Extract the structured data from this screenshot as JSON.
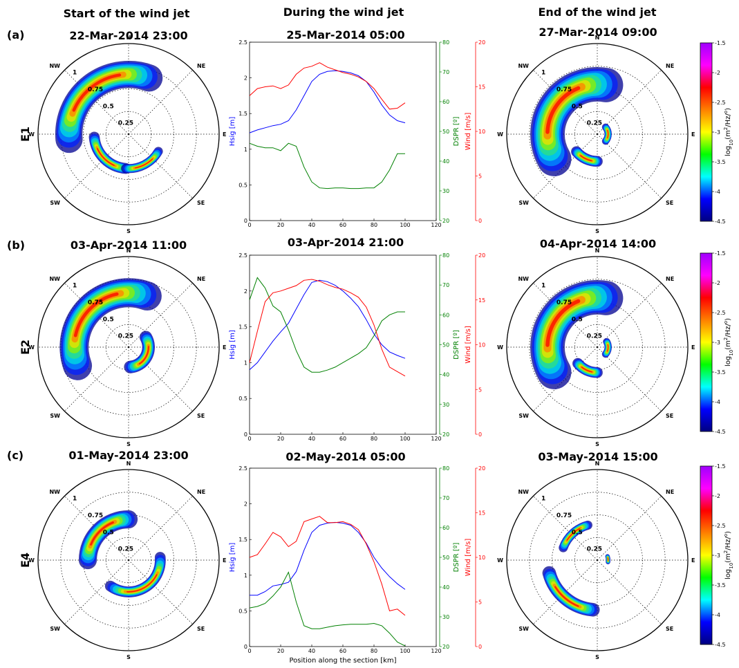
{
  "column_headers": [
    "Start of the wind jet",
    "During the wind jet",
    "End of the wind jet"
  ],
  "panels": [
    {
      "label": "(a)",
      "region": "E1",
      "titles": [
        "22-Mar-2014   23:00",
        "25-Mar-2014   05:00",
        "27-Mar-2014   09:00"
      ]
    },
    {
      "label": "(b)",
      "region": "E2",
      "titles": [
        "03-Apr-2014   11:00",
        "03-Apr-2014   21:00",
        "04-Apr-2014   14:00"
      ]
    },
    {
      "label": "(c)",
      "region": "E4",
      "titles": [
        "01-May-2014   23:00",
        "02-May-2014   05:00",
        "03-May-2014   15:00"
      ]
    }
  ],
  "polar": {
    "directions": [
      "N",
      "NE",
      "E",
      "SE",
      "S",
      "SW",
      "W",
      "NW"
    ],
    "ring_labels": [
      "1",
      "0.75",
      "0.5",
      "0.25"
    ]
  },
  "colorbar": {
    "label": "log10(m²/Hz/°)",
    "label_parts": [
      "log",
      "10",
      "(m",
      "2",
      "/Hz/",
      "o",
      ")"
    ],
    "ticks": [
      "-1.5",
      "-2",
      "-2.5",
      "-3",
      "-3.5",
      "-4",
      "-4.5"
    ],
    "range": [
      -4.5,
      -1.5
    ],
    "colors": [
      "#000080",
      "#0000ff",
      "#00ffff",
      "#00ff00",
      "#ffff00",
      "#ff8000",
      "#ff0000",
      "#ff00ff",
      "#a000ff"
    ]
  },
  "line_axes": {
    "xlabel": "Position along the section [km]",
    "hsig_label": "Hsig [m]",
    "dspr_label": "DSPR [º]",
    "wind_label": "Wind [m/s]",
    "xticks": [
      "0",
      "20",
      "40",
      "60",
      "80",
      "100",
      "120"
    ],
    "hsig_ticks": [
      "0",
      "0.5",
      "1",
      "1.5",
      "2",
      "2.5"
    ],
    "dspr_ticks": [
      "20",
      "30",
      "40",
      "50",
      "60",
      "70",
      "80"
    ],
    "wind_ticks": [
      "0",
      "5",
      "10",
      "15",
      "20"
    ],
    "colors": {
      "hsig": "#0000ff",
      "dspr": "#008000",
      "wind": "#ff0000"
    }
  },
  "chart_data": [
    {
      "type": "line",
      "title": "25-Mar-2014   05:00",
      "xlabel": "",
      "ylabel": "Hsig [m]",
      "xlim": [
        0,
        120
      ],
      "ylim": [
        0,
        2.5
      ],
      "y2lim": [
        20,
        80
      ],
      "y3lim": [
        0,
        20
      ],
      "x": [
        0,
        5,
        10,
        15,
        20,
        25,
        30,
        35,
        40,
        45,
        50,
        55,
        60,
        65,
        70,
        75,
        80,
        85,
        90,
        95,
        100
      ],
      "series": [
        {
          "name": "Hsig [m]",
          "axis": "y",
          "values": [
            1.23,
            1.27,
            1.3,
            1.33,
            1.35,
            1.4,
            1.55,
            1.75,
            1.95,
            2.05,
            2.09,
            2.1,
            2.09,
            2.07,
            2.03,
            1.95,
            1.8,
            1.62,
            1.48,
            1.4,
            1.37
          ]
        },
        {
          "name": "DSPR [º]",
          "axis": "y2",
          "values": [
            46,
            45,
            44.5,
            44.5,
            43.5,
            46,
            45,
            38,
            33,
            31,
            30.8,
            31,
            31,
            30.8,
            30.8,
            31,
            31,
            33,
            37,
            42.5,
            42.5
          ]
        },
        {
          "name": "Wind [m/s]",
          "axis": "y3",
          "values": [
            14,
            14.8,
            15,
            15.1,
            14.8,
            15.2,
            16.4,
            17.1,
            17.3,
            17.7,
            17.2,
            16.9,
            16.6,
            16.4,
            16.1,
            15.6,
            14.8,
            13.6,
            12.5,
            12.6,
            13.2
          ]
        }
      ]
    },
    {
      "type": "line",
      "title": "03-Apr-2014   21:00",
      "xlabel": "",
      "ylabel": "Hsig [m]",
      "xlim": [
        0,
        120
      ],
      "ylim": [
        0,
        2.5
      ],
      "y2lim": [
        20,
        80
      ],
      "y3lim": [
        0,
        20
      ],
      "x": [
        0,
        5,
        10,
        15,
        20,
        25,
        30,
        35,
        40,
        45,
        50,
        55,
        60,
        65,
        70,
        75,
        80,
        85,
        90,
        95,
        100
      ],
      "series": [
        {
          "name": "Hsig [m]",
          "axis": "y",
          "values": [
            0.9,
            1.0,
            1.15,
            1.3,
            1.43,
            1.55,
            1.75,
            1.95,
            2.12,
            2.15,
            2.13,
            2.08,
            2.0,
            1.9,
            1.78,
            1.6,
            1.4,
            1.25,
            1.15,
            1.1,
            1.06
          ]
        },
        {
          "name": "DSPR [º]",
          "axis": "y2",
          "values": [
            65,
            72.5,
            69,
            63,
            61,
            55,
            48,
            42.5,
            40.8,
            40.8,
            41.5,
            42.5,
            44,
            45.5,
            47,
            49,
            53,
            58,
            60,
            61,
            61
          ]
        },
        {
          "name": "Wind [m/s]",
          "axis": "y3",
          "values": [
            8,
            11.5,
            14.8,
            15.8,
            16,
            16.3,
            16.6,
            17.2,
            17.3,
            17.1,
            16.7,
            16.4,
            16.2,
            15.8,
            15.3,
            14.2,
            12.2,
            9.5,
            7.5,
            7,
            6.5
          ]
        }
      ]
    },
    {
      "type": "line",
      "title": "02-May-2014   05:00",
      "xlabel": "Position along the section [km]",
      "ylabel": "Hsig [m]",
      "xlim": [
        0,
        120
      ],
      "ylim": [
        0,
        2.5
      ],
      "y2lim": [
        20,
        80
      ],
      "y3lim": [
        0,
        20
      ],
      "x": [
        0,
        5,
        10,
        15,
        20,
        25,
        30,
        35,
        40,
        45,
        50,
        55,
        60,
        65,
        70,
        75,
        80,
        85,
        90,
        95,
        100
      ],
      "series": [
        {
          "name": "Hsig [m]",
          "axis": "y",
          "values": [
            0.72,
            0.72,
            0.77,
            0.85,
            0.87,
            0.9,
            1.05,
            1.35,
            1.6,
            1.7,
            1.73,
            1.74,
            1.73,
            1.7,
            1.6,
            1.45,
            1.25,
            1.1,
            0.98,
            0.88,
            0.8
          ]
        },
        {
          "name": "DSPR [º]",
          "axis": "y2",
          "values": [
            33,
            33.5,
            34.5,
            37,
            40,
            45,
            35,
            27,
            26,
            26,
            26.5,
            27,
            27.3,
            27.5,
            27.5,
            27.5,
            27.8,
            27,
            24.5,
            21.5,
            20.2
          ]
        },
        {
          "name": "Wind [m/s]",
          "axis": "y3",
          "values": [
            10,
            10.3,
            11.5,
            12.8,
            12.3,
            11.2,
            11.8,
            14,
            14.3,
            14.6,
            13.9,
            13.9,
            14,
            13.7,
            13.1,
            11.5,
            9.5,
            7,
            4,
            4.2,
            3.5
          ]
        }
      ]
    }
  ]
}
